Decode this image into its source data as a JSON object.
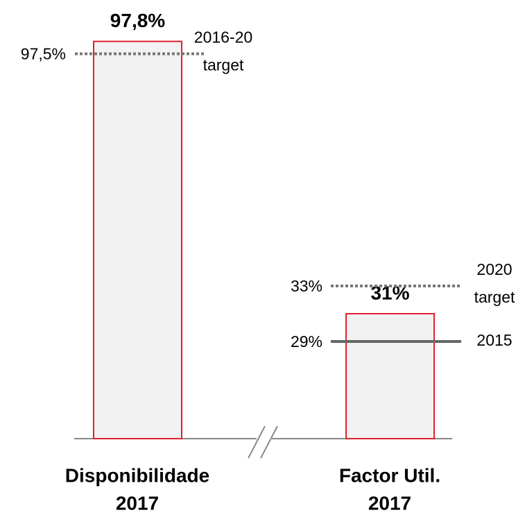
{
  "chart_data": [
    {
      "type": "bar",
      "categories": [
        [
          "Disponibilidade",
          "2017"
        ]
      ],
      "values": [
        97.8
      ],
      "value_labels": [
        "97,8%"
      ],
      "fill": "#f2f2f2",
      "edge_color": "#e0202f",
      "ylim": [
        88.2,
        98.8
      ],
      "reference_lines": [
        {
          "value": 97.5,
          "value_label": "97,5%",
          "label": [
            "2016-20",
            "target"
          ],
          "style": "dotted",
          "color": "#777777"
        }
      ]
    },
    {
      "type": "bar",
      "categories": [
        [
          "Factor Util.",
          "2017"
        ]
      ],
      "values": [
        31
      ],
      "value_labels": [
        "31%"
      ],
      "fill": "#f2f2f2",
      "edge_color": "#e0202f",
      "ylim": [
        22,
        53.6
      ],
      "reference_lines": [
        {
          "value": 33,
          "value_label": "33%",
          "label": [
            "2020",
            "target"
          ],
          "style": "dotted",
          "color": "#777777"
        },
        {
          "value": 29,
          "value_label": "29%",
          "label": [
            "2015"
          ],
          "style": "solid",
          "color": "#666666"
        }
      ]
    }
  ]
}
